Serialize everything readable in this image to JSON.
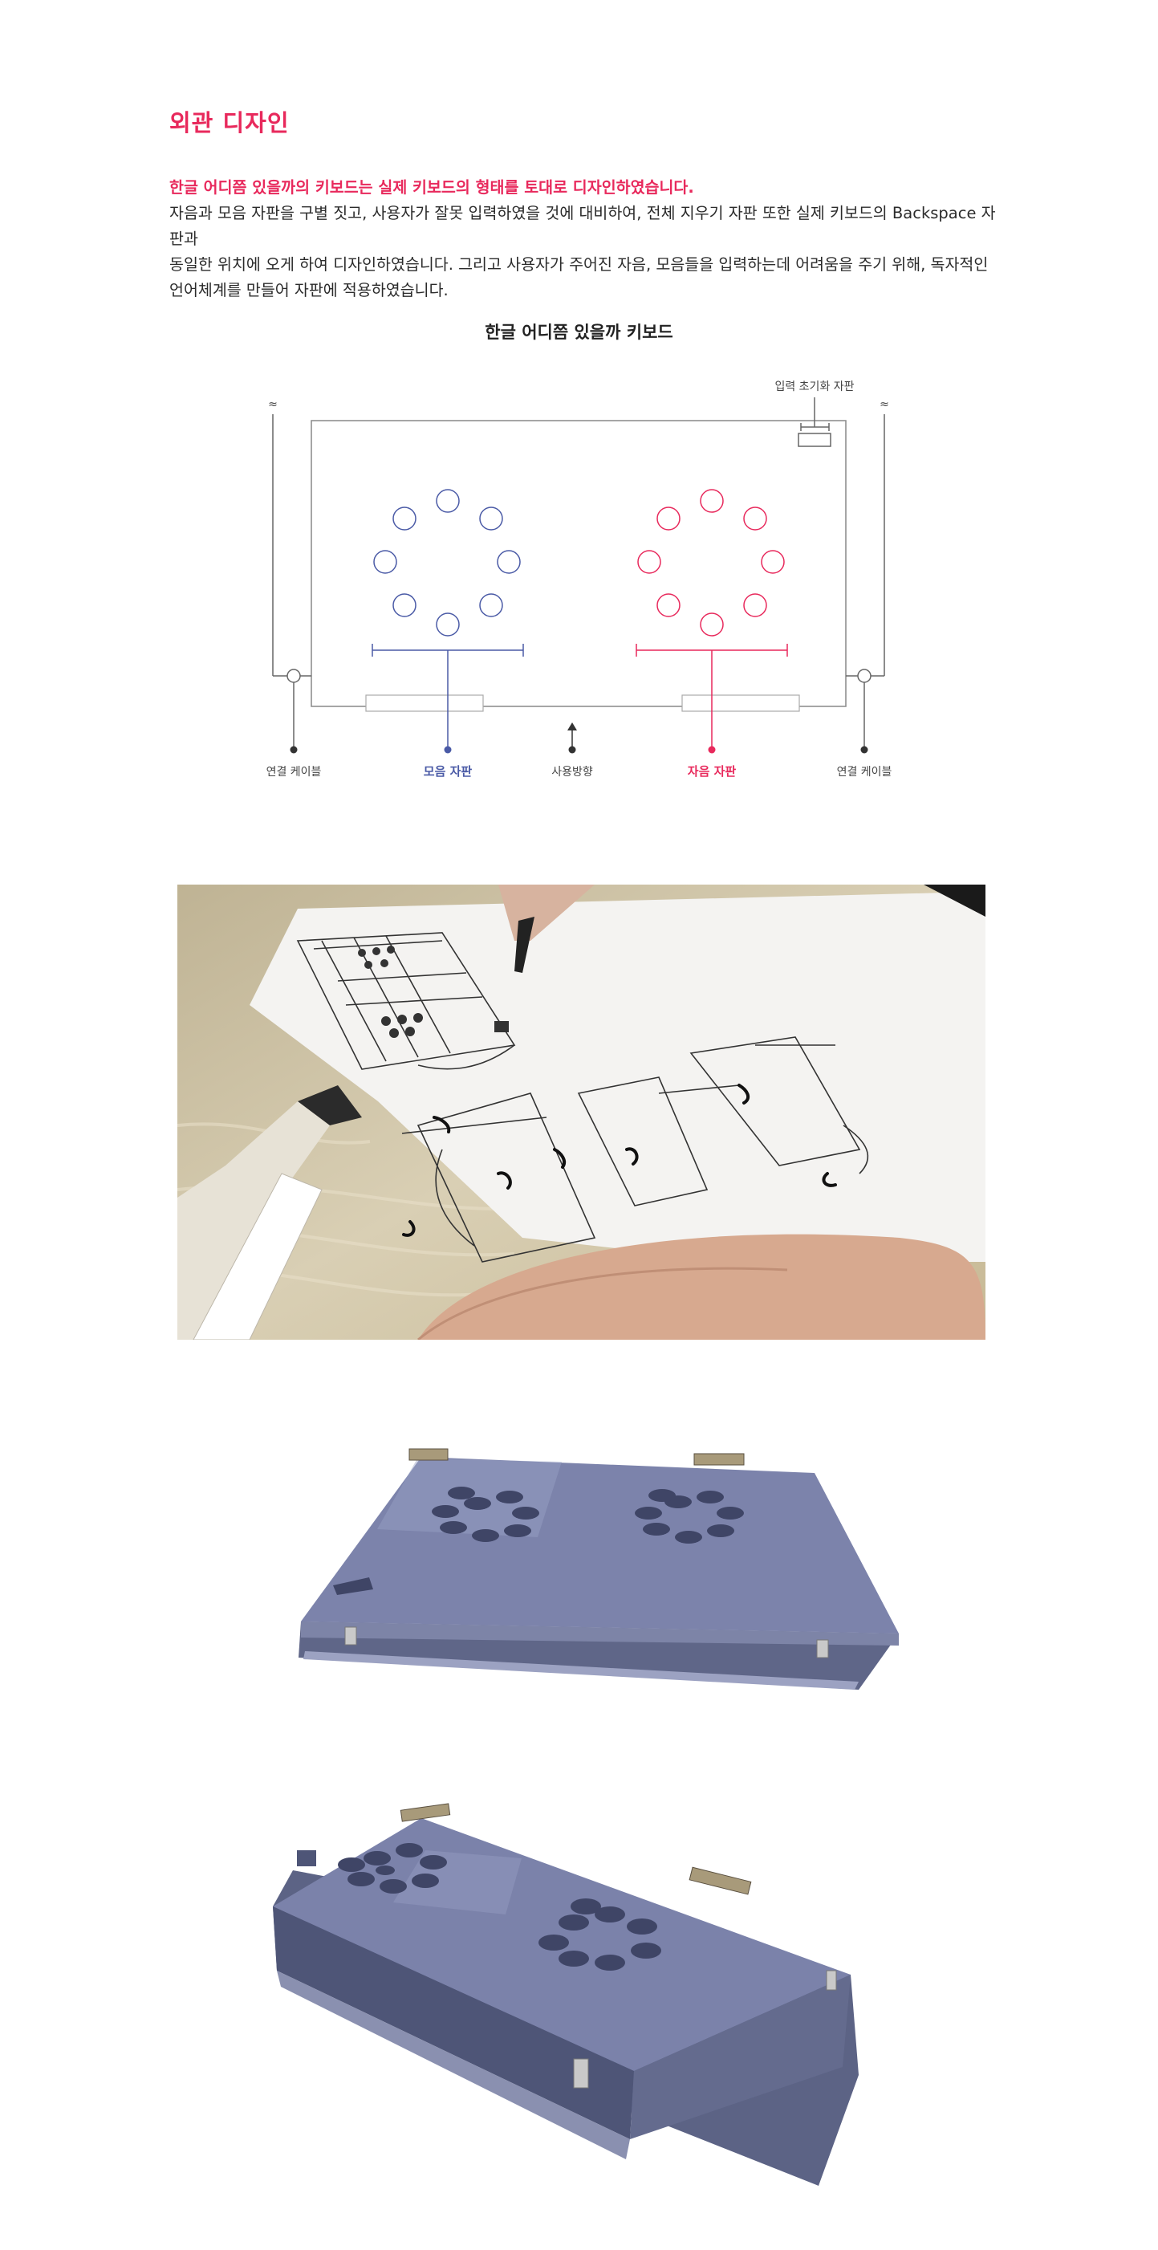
{
  "section": {
    "title": "외관 디자인"
  },
  "intro": {
    "lead": "한글 어디쯤 있을까의 키보드는 실제 키보드의 형태를 토대로 디자인하였습니다.",
    "line1": "자음과 모음 자판을 구별 짓고, 사용자가 잘못 입력하였을 것에 대비하여, 전체 지우기 자판 또한 실제 키보드의 Backspace 자판과",
    "line2": "동일한 위치에 오게 하여 디자인하였습니다. 그리고 사용자가 주어진 자음, 모음들을 입력하는데 어려움을 주기 위해, 독자적인",
    "line3": "언어체계를 만들어 자판에 적용하였습니다."
  },
  "diagram": {
    "title": "한글 어디쯤 있을까 키보드",
    "reset_key_label": "입력 초기화 자판",
    "cable_left_label": "연결 케이블",
    "vowel_label": "모음 자판",
    "direction_label": "사용방향",
    "consonant_label": "자음 자판",
    "cable_right_label": "연결 케이블",
    "break_symbol": "≈",
    "colors": {
      "vowel": "#4a5aa6",
      "consonant": "#e8295c",
      "outline": "#888888"
    }
  },
  "photos": {
    "sketch": {
      "description_icon": "sketch-photo"
    },
    "keyboard_front": {
      "description_icon": "keyboard-photo"
    },
    "keyboard_angle": {
      "description_icon": "keyboard-photo"
    }
  }
}
